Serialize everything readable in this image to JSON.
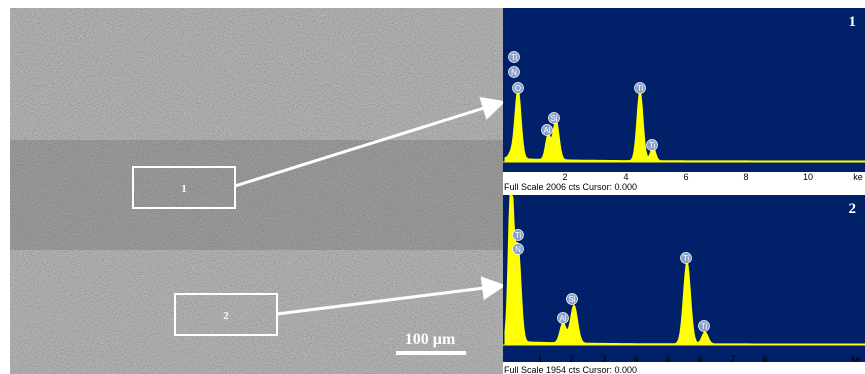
{
  "sem_image": {
    "regions": [
      {
        "label": "1"
      },
      {
        "label": "2"
      }
    ],
    "scale_bar": "100 µm"
  },
  "spectra": [
    {
      "label": "1",
      "x_tick_labels": [
        "2",
        "4",
        "6",
        "8",
        "10",
        "ke"
      ],
      "peak_labels": [
        "Ti",
        "N",
        "O",
        "Si",
        "Al",
        "Ti",
        "Ti"
      ],
      "caption": "Full Scale 2006 cts Cursor: 0.000"
    },
    {
      "label": "2",
      "x_tick_labels": [
        "1",
        "2",
        "3",
        "4",
        "5",
        "6",
        "7",
        "8",
        "ke"
      ],
      "peak_labels": [
        "Ti",
        "N",
        "Si",
        "Al",
        "Ti",
        "Ti"
      ],
      "caption": "Full Scale 1954 cts Cursor: 0.000"
    }
  ]
}
